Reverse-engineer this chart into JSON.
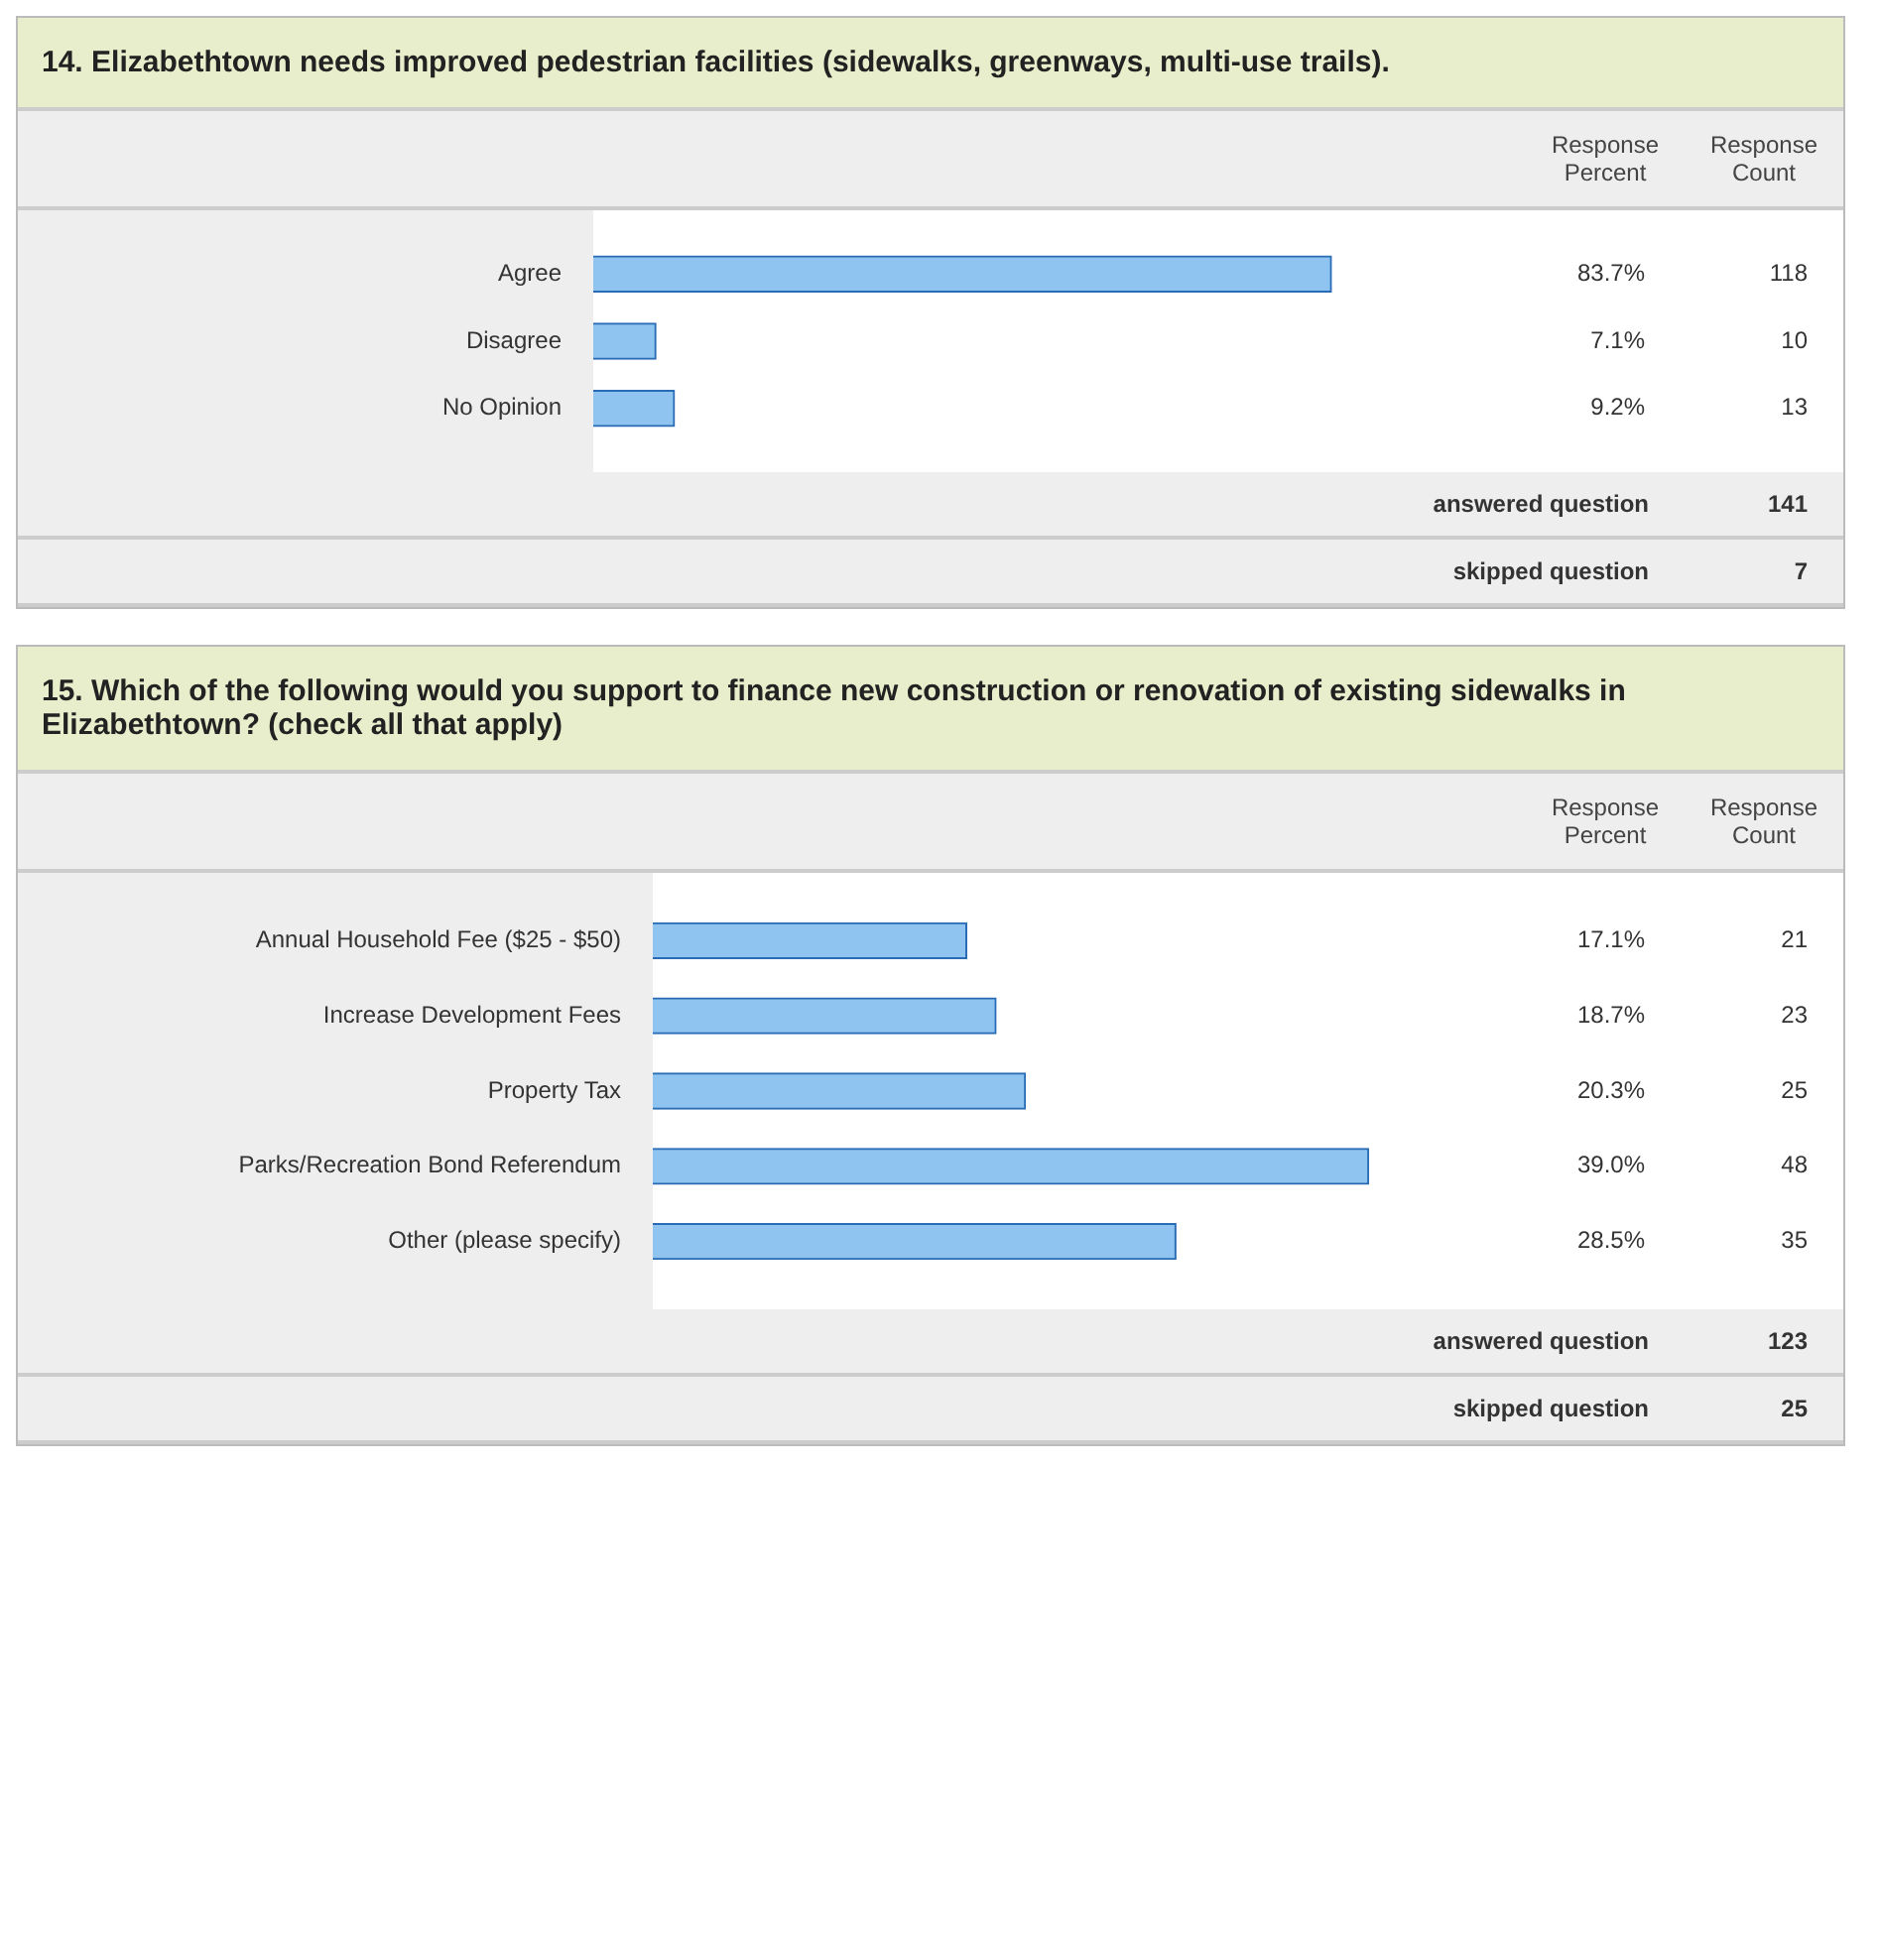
{
  "chart_data": [
    {
      "type": "bar",
      "orientation": "horizontal",
      "title": "14. Elizabethtown needs improved pedestrian facilities (sidewalks, greenways, multi-use trails).",
      "categories": [
        "Agree",
        "Disagree",
        "No Opinion"
      ],
      "values": [
        83.7,
        7.1,
        9.2
      ],
      "value_labels": [
        "83.7%",
        "7.1%",
        "9.2%"
      ],
      "color": "#8fc3f0",
      "tick_labels": "y",
      "legend": false,
      "annotations": [
        "Response Percent",
        "Response Count",
        "118",
        "10",
        "13",
        "answered question",
        "141",
        "skipped question",
        "7"
      ]
    },
    {
      "type": "bar",
      "orientation": "horizontal",
      "title": "15. Which of the following would you support to finance new construction or renovation of existing sidewalks in Elizabethtown? (check all that apply)",
      "categories": [
        "Annual Household Fee ($25 - $50)",
        "Increase Development Fees",
        "Property Tax",
        "Parks/Recreation Bond Referendum",
        "Other (please specify)"
      ],
      "values": [
        17.1,
        18.7,
        20.3,
        39.0,
        28.5
      ],
      "value_labels": [
        "17.1%",
        "18.7%",
        "20.3%",
        "39.0%",
        "28.5%"
      ],
      "color": "#8fc3f0",
      "tick_labels": "y",
      "legend": false,
      "annotations": [
        "Response Percent",
        "Response Count",
        "21",
        "23",
        "25",
        "48",
        "35",
        "answered question",
        "123",
        "skipped question",
        "25"
      ]
    }
  ]
}
